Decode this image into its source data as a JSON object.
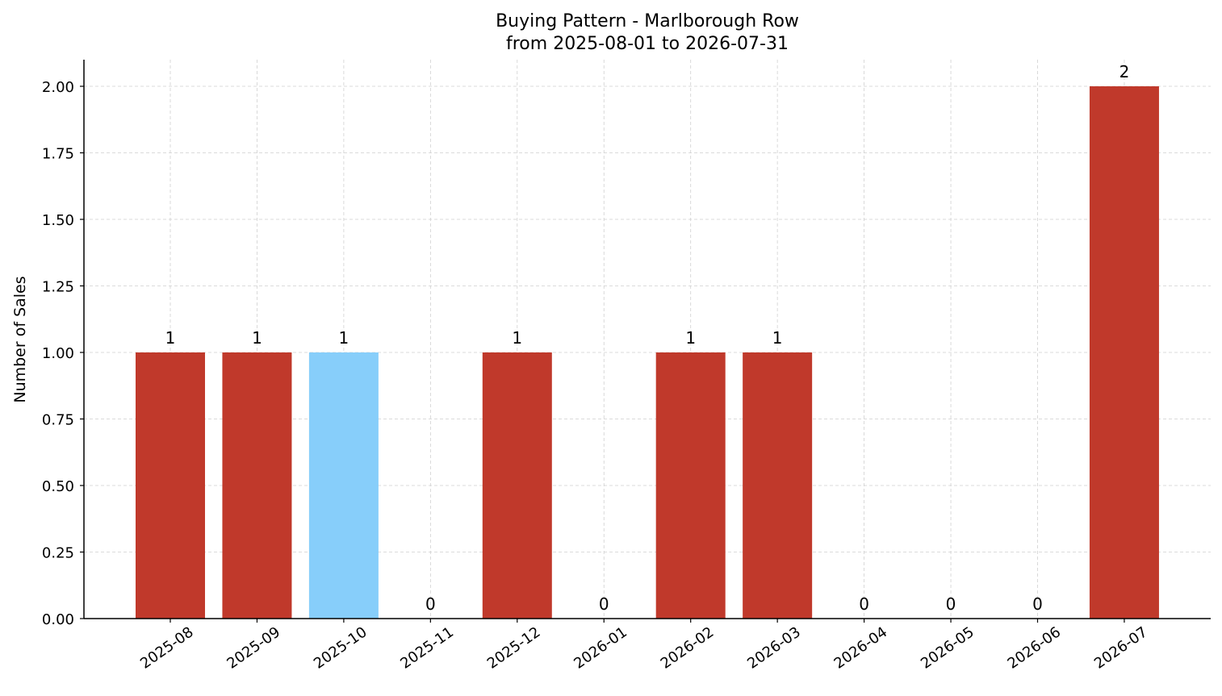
{
  "chart_data": {
    "type": "bar",
    "title_line1": "Buying Pattern - Marlborough Row",
    "title_line2": "from 2025-08-01 to 2026-07-31",
    "xlabel": "",
    "ylabel": "Number of Sales",
    "categories": [
      "2025-08",
      "2025-09",
      "2025-10",
      "2025-11",
      "2025-12",
      "2026-01",
      "2026-02",
      "2026-03",
      "2026-04",
      "2026-05",
      "2026-06",
      "2026-07"
    ],
    "values": [
      1,
      1,
      1,
      0,
      1,
      0,
      1,
      1,
      0,
      0,
      0,
      2
    ],
    "bar_colors": [
      "#c0392b",
      "#c0392b",
      "#87cefa",
      "#c0392b",
      "#c0392b",
      "#c0392b",
      "#c0392b",
      "#c0392b",
      "#c0392b",
      "#c0392b",
      "#c0392b",
      "#c0392b"
    ],
    "data_labels": [
      "1",
      "1",
      "1",
      "0",
      "1",
      "0",
      "1",
      "1",
      "0",
      "0",
      "0",
      "2"
    ],
    "ylim": [
      0,
      2.1
    ],
    "yticks": [
      "0.00",
      "0.25",
      "0.50",
      "0.75",
      "1.00",
      "1.25",
      "1.50",
      "1.75",
      "2.00"
    ],
    "grid": true,
    "legend": "none"
  }
}
